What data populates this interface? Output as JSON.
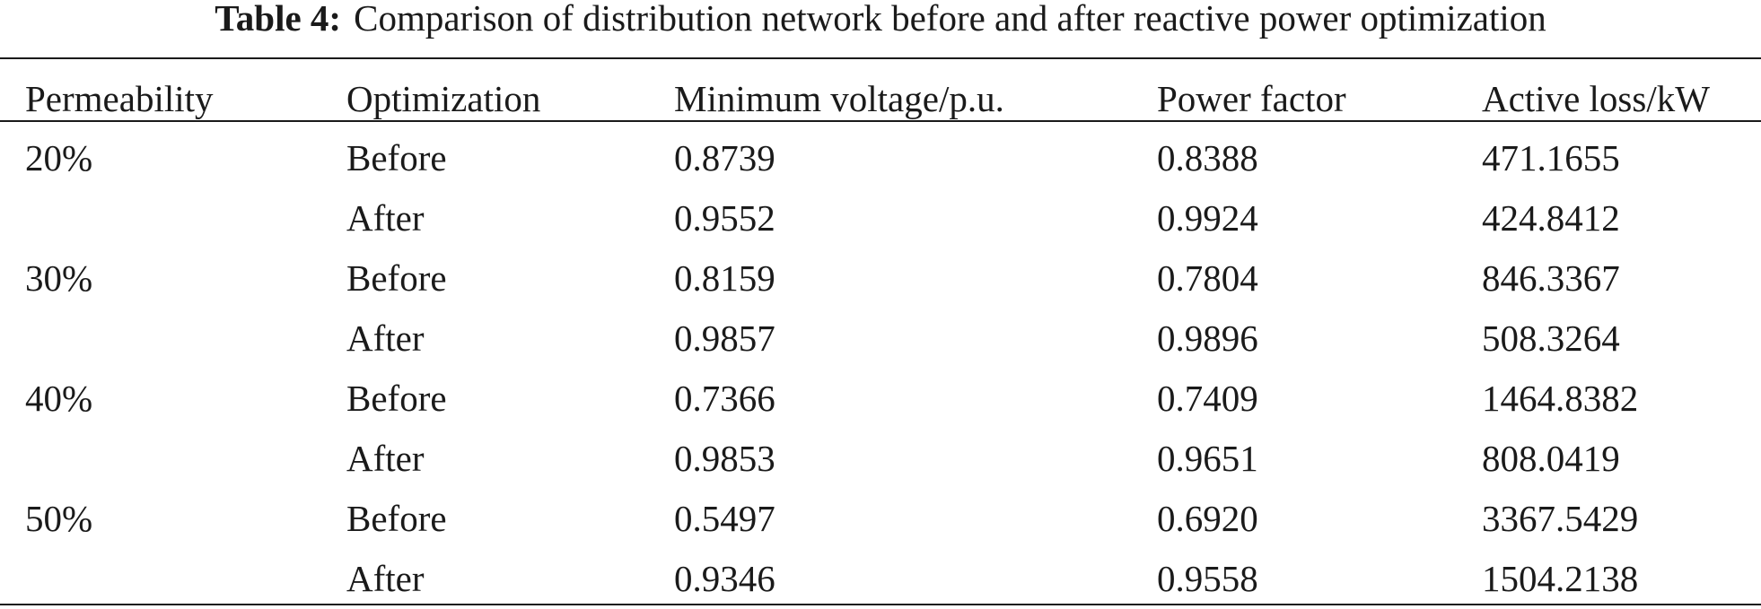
{
  "caption": {
    "label": "Table 4:",
    "text": "Comparison of distribution network before and after reactive power optimization"
  },
  "table": {
    "headers": [
      "Permeability",
      "Optimization",
      "Minimum voltage/p.u.",
      "Power factor",
      "Active loss/kW"
    ],
    "rows": [
      [
        "20%",
        "Before",
        "0.8739",
        "0.8388",
        "471.1655"
      ],
      [
        "",
        "After",
        "0.9552",
        "0.9924",
        "424.8412"
      ],
      [
        "30%",
        "Before",
        "0.8159",
        "0.7804",
        "846.3367"
      ],
      [
        "",
        "After",
        "0.9857",
        "0.9896",
        "508.3264"
      ],
      [
        "40%",
        "Before",
        "0.7366",
        "0.7409",
        "1464.8382"
      ],
      [
        "",
        "After",
        "0.9853",
        "0.9651",
        "808.0419"
      ],
      [
        "50%",
        "Before",
        "0.5497",
        "0.6920",
        "3367.5429"
      ],
      [
        "",
        "After",
        "0.9346",
        "0.9558",
        "1504.2138"
      ]
    ]
  }
}
